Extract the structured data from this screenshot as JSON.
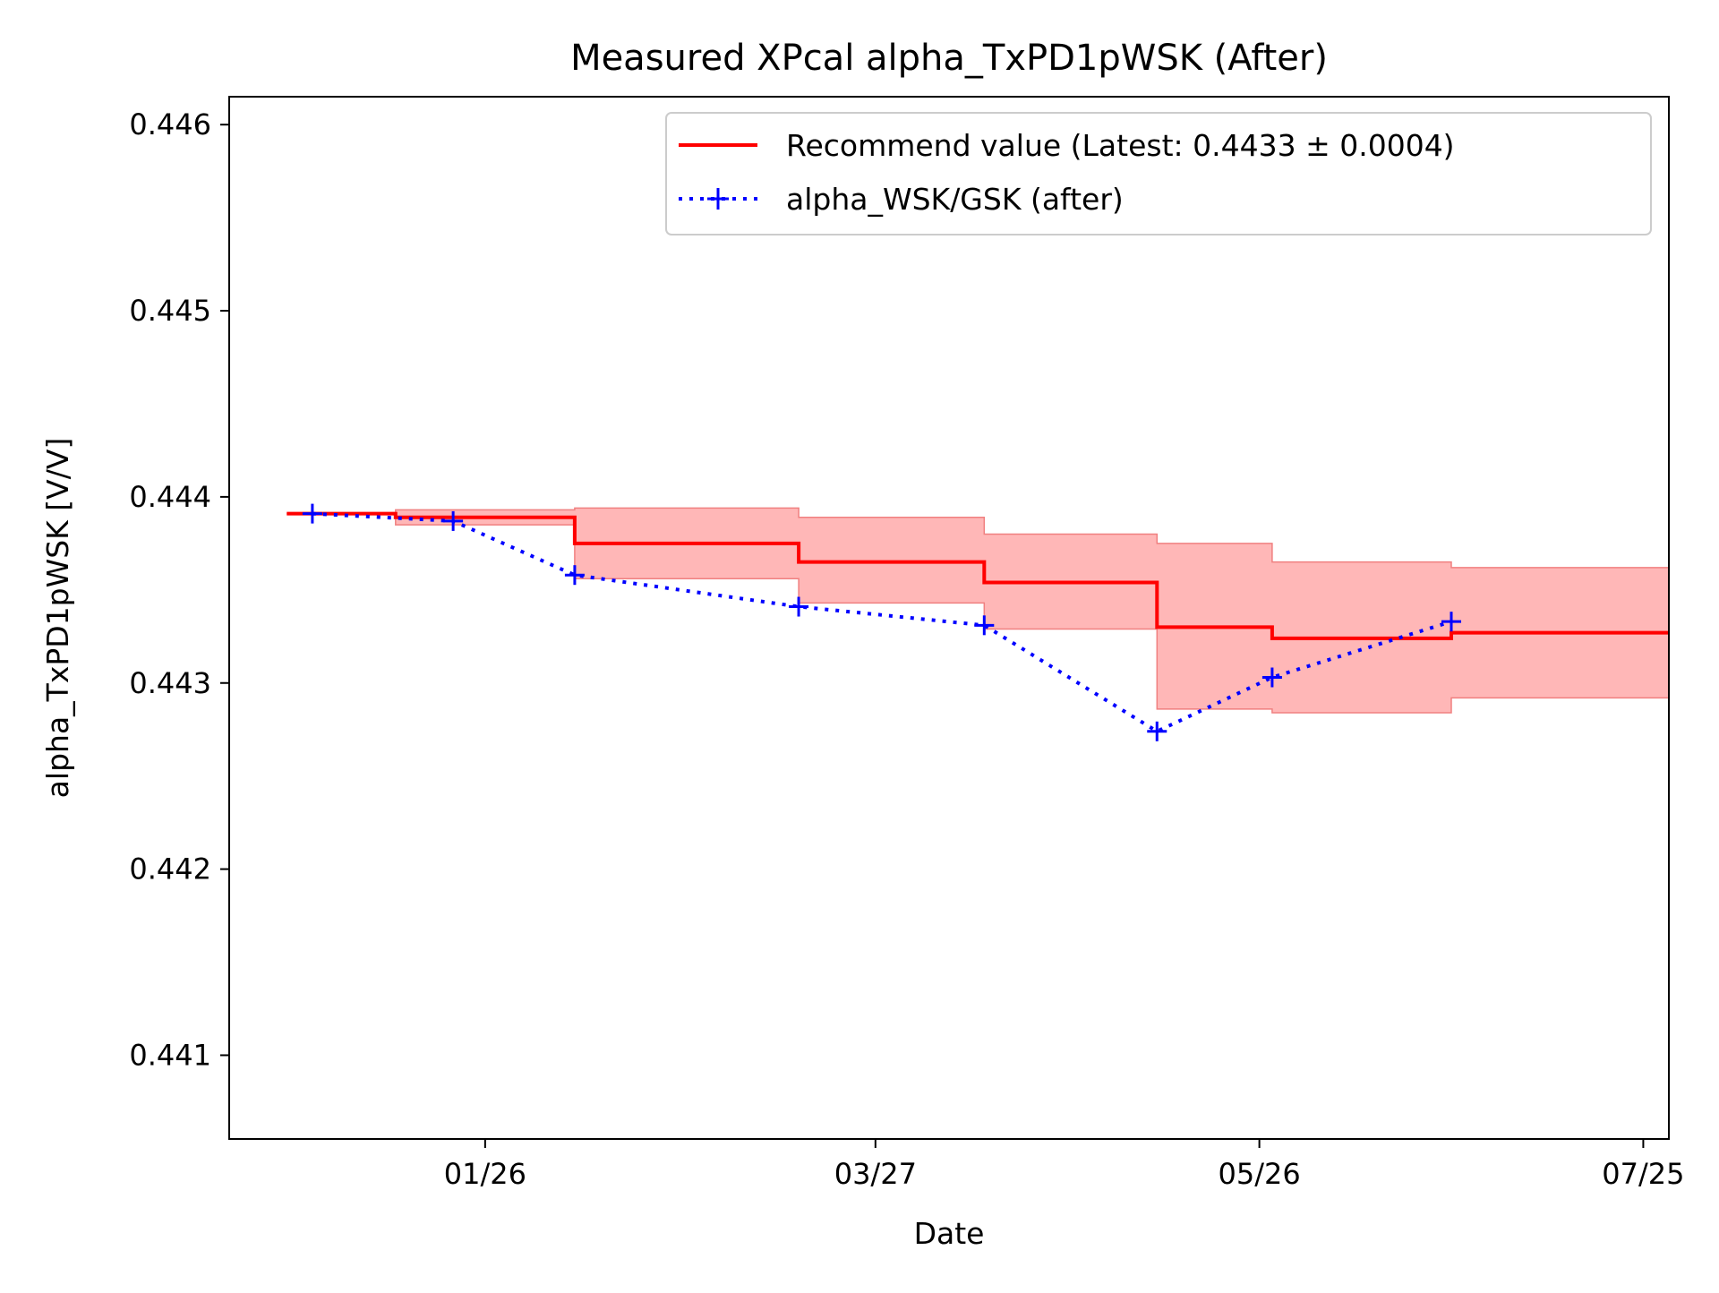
{
  "chart_data": {
    "type": "line",
    "title": "Measured XPcal alpha_TxPD1pWSK (After)",
    "xlabel": "Date",
    "ylabel": "alpha_TxPD1pWSK [V/V]",
    "xlim": [
      "2023-12-17",
      "2024-07-29"
    ],
    "ylim": [
      0.44055,
      0.44615
    ],
    "x_ticks": [
      {
        "date": "2024-01-26",
        "label": "01/26"
      },
      {
        "date": "2024-03-27",
        "label": "03/27"
      },
      {
        "date": "2024-05-26",
        "label": "05/26"
      },
      {
        "date": "2024-07-25",
        "label": "07/25"
      }
    ],
    "y_ticks": [
      "0.441",
      "0.442",
      "0.443",
      "0.444",
      "0.445",
      "0.446"
    ],
    "grid": false,
    "legend_position": "top-right",
    "series": [
      {
        "name": "Recommend value (Latest: 0.4433 ± 0.0004)",
        "kind": "step-with-band",
        "color": "#ff0000",
        "band_color": "#ffb3b3",
        "steps": [
          {
            "start": "2023-12-26",
            "value": 0.44391,
            "lower": 0.44391,
            "upper": 0.44391
          },
          {
            "start": "2024-01-12",
            "value": 0.44389,
            "lower": 0.44385,
            "upper": 0.44393
          },
          {
            "start": "2024-02-09",
            "value": 0.44375,
            "lower": 0.44356,
            "upper": 0.44394
          },
          {
            "start": "2024-03-15",
            "value": 0.44365,
            "lower": 0.44343,
            "upper": 0.44389
          },
          {
            "start": "2024-04-13",
            "value": 0.44354,
            "lower": 0.44329,
            "upper": 0.4438
          },
          {
            "start": "2024-05-10",
            "value": 0.4433,
            "lower": 0.44286,
            "upper": 0.44375
          },
          {
            "start": "2024-05-28",
            "value": 0.44324,
            "lower": 0.44284,
            "upper": 0.44365
          },
          {
            "start": "2024-06-25",
            "value": 0.44327,
            "lower": 0.44292,
            "upper": 0.44362
          }
        ],
        "end": "2024-07-29"
      },
      {
        "name": "alpha_WSK/GSK (after)",
        "kind": "line-markers",
        "color": "#0000ff",
        "dates": [
          "2023-12-30",
          "2024-01-21",
          "2024-02-09",
          "2024-03-15",
          "2024-04-13",
          "2024-05-10",
          "2024-05-28",
          "2024-06-25"
        ],
        "values": [
          0.44391,
          0.44387,
          0.44358,
          0.44341,
          0.44331,
          0.44274,
          0.44303,
          0.44333
        ]
      }
    ]
  }
}
